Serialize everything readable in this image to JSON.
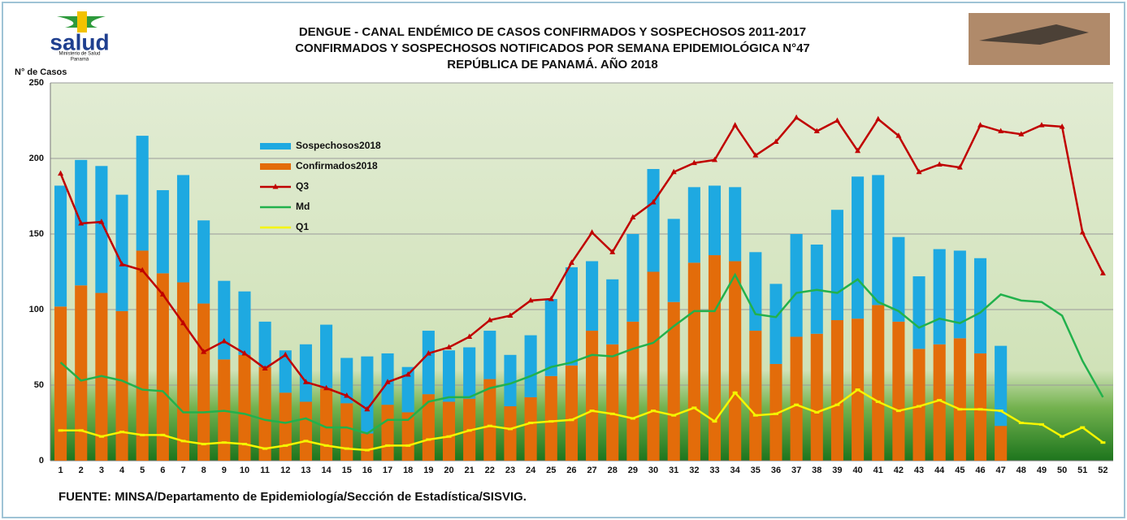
{
  "chart_data": {
    "type": "bar",
    "title": [
      "DENGUE - CANAL ENDÉMICO DE CASOS CONFIRMADOS Y SOSPECHOSOS 2011-2017",
      "CONFIRMADOS Y SOSPECHOSOS NOTIFICADOS POR SEMANA EPIDEMIOLÓGICA N°47",
      "REPÚBLICA DE PANAMÁ. AÑO 2018"
    ],
    "logo": {
      "name": "salud",
      "lines": [
        "Ministerio de Salud",
        "Panamá"
      ]
    },
    "y_label": "N° de Casos",
    "source": "FUENTE: MINSA/Departamento de Epidemiología/Sección de Estadística/SISVIG.",
    "categories": [
      "1",
      "2",
      "3",
      "4",
      "5",
      "6",
      "7",
      "8",
      "9",
      "10",
      "11",
      "12",
      "13",
      "14",
      "15",
      "16",
      "17",
      "18",
      "19",
      "20",
      "21",
      "22",
      "23",
      "24",
      "25",
      "26",
      "27",
      "28",
      "29",
      "30",
      "31",
      "32",
      "33",
      "34",
      "35",
      "36",
      "37",
      "38",
      "39",
      "40",
      "41",
      "42",
      "43",
      "44",
      "45",
      "46",
      "47",
      "48",
      "49",
      "50",
      "51",
      "52"
    ],
    "ylim": [
      0,
      250
    ],
    "yticks": [
      0,
      50,
      100,
      150,
      200,
      250
    ],
    "grid": true,
    "series": [
      {
        "name": "Sospechosos2018",
        "kind": "bar",
        "color": "#1ea9e1",
        "values": [
          80,
          83,
          84,
          77,
          76,
          55,
          71,
          55,
          52,
          42,
          30,
          28,
          38,
          42,
          30,
          51,
          34,
          30,
          42,
          34,
          34,
          32,
          34,
          41,
          51,
          65,
          46,
          43,
          58,
          68,
          55,
          50,
          46,
          49,
          52,
          53,
          68,
          59,
          73,
          94,
          86,
          56,
          48,
          63,
          58,
          63,
          53,
          null,
          null,
          null,
          null,
          null
        ]
      },
      {
        "name": "Confirmados2018",
        "kind": "bar",
        "color": "#e36c0a",
        "values": [
          102,
          116,
          111,
          99,
          139,
          124,
          118,
          104,
          67,
          70,
          62,
          45,
          39,
          48,
          38,
          18,
          37,
          32,
          44,
          39,
          41,
          54,
          36,
          42,
          56,
          63,
          86,
          77,
          92,
          125,
          105,
          131,
          136,
          132,
          86,
          64,
          82,
          84,
          93,
          94,
          103,
          92,
          74,
          77,
          81,
          71,
          23,
          null,
          null,
          null,
          null,
          null
        ]
      },
      {
        "name": "Q3",
        "kind": "line",
        "color": "#c00000",
        "marker": "triangle",
        "values": [
          190,
          157,
          158,
          130,
          126,
          110,
          91,
          72,
          79,
          71,
          61,
          70,
          52,
          48,
          43,
          34,
          52,
          57,
          71,
          75,
          82,
          93,
          96,
          106,
          107,
          131,
          151,
          138,
          161,
          171,
          191,
          197,
          199,
          222,
          202,
          211,
          227,
          218,
          225,
          205,
          226,
          215,
          191,
          196,
          194,
          222,
          218,
          216,
          222,
          221,
          151,
          124
        ]
      },
      {
        "name": "Md",
        "kind": "line",
        "color": "#22b14c",
        "values": [
          65,
          53,
          56,
          53,
          47,
          46,
          32,
          32,
          33,
          31,
          27,
          25,
          28,
          22,
          22,
          18,
          27,
          27,
          39,
          42,
          42,
          48,
          51,
          56,
          62,
          65,
          70,
          69,
          74,
          78,
          89,
          99,
          99,
          123,
          97,
          95,
          111,
          113,
          111,
          120,
          105,
          99,
          88,
          94,
          91,
          98,
          110,
          106,
          105,
          96,
          66,
          42
        ]
      },
      {
        "name": "Q1",
        "kind": "line",
        "color": "#f5f500",
        "marker": "dash",
        "values": [
          20,
          20,
          16,
          19,
          17,
          17,
          13,
          11,
          12,
          11,
          8,
          10,
          13,
          10,
          8,
          7,
          10,
          10,
          14,
          16,
          20,
          23,
          21,
          25,
          26,
          27,
          33,
          31,
          28,
          33,
          30,
          35,
          26,
          45,
          30,
          31,
          37,
          32,
          37,
          47,
          39,
          33,
          36,
          40,
          34,
          34,
          33,
          25,
          24,
          16,
          22,
          12
        ]
      }
    ]
  }
}
